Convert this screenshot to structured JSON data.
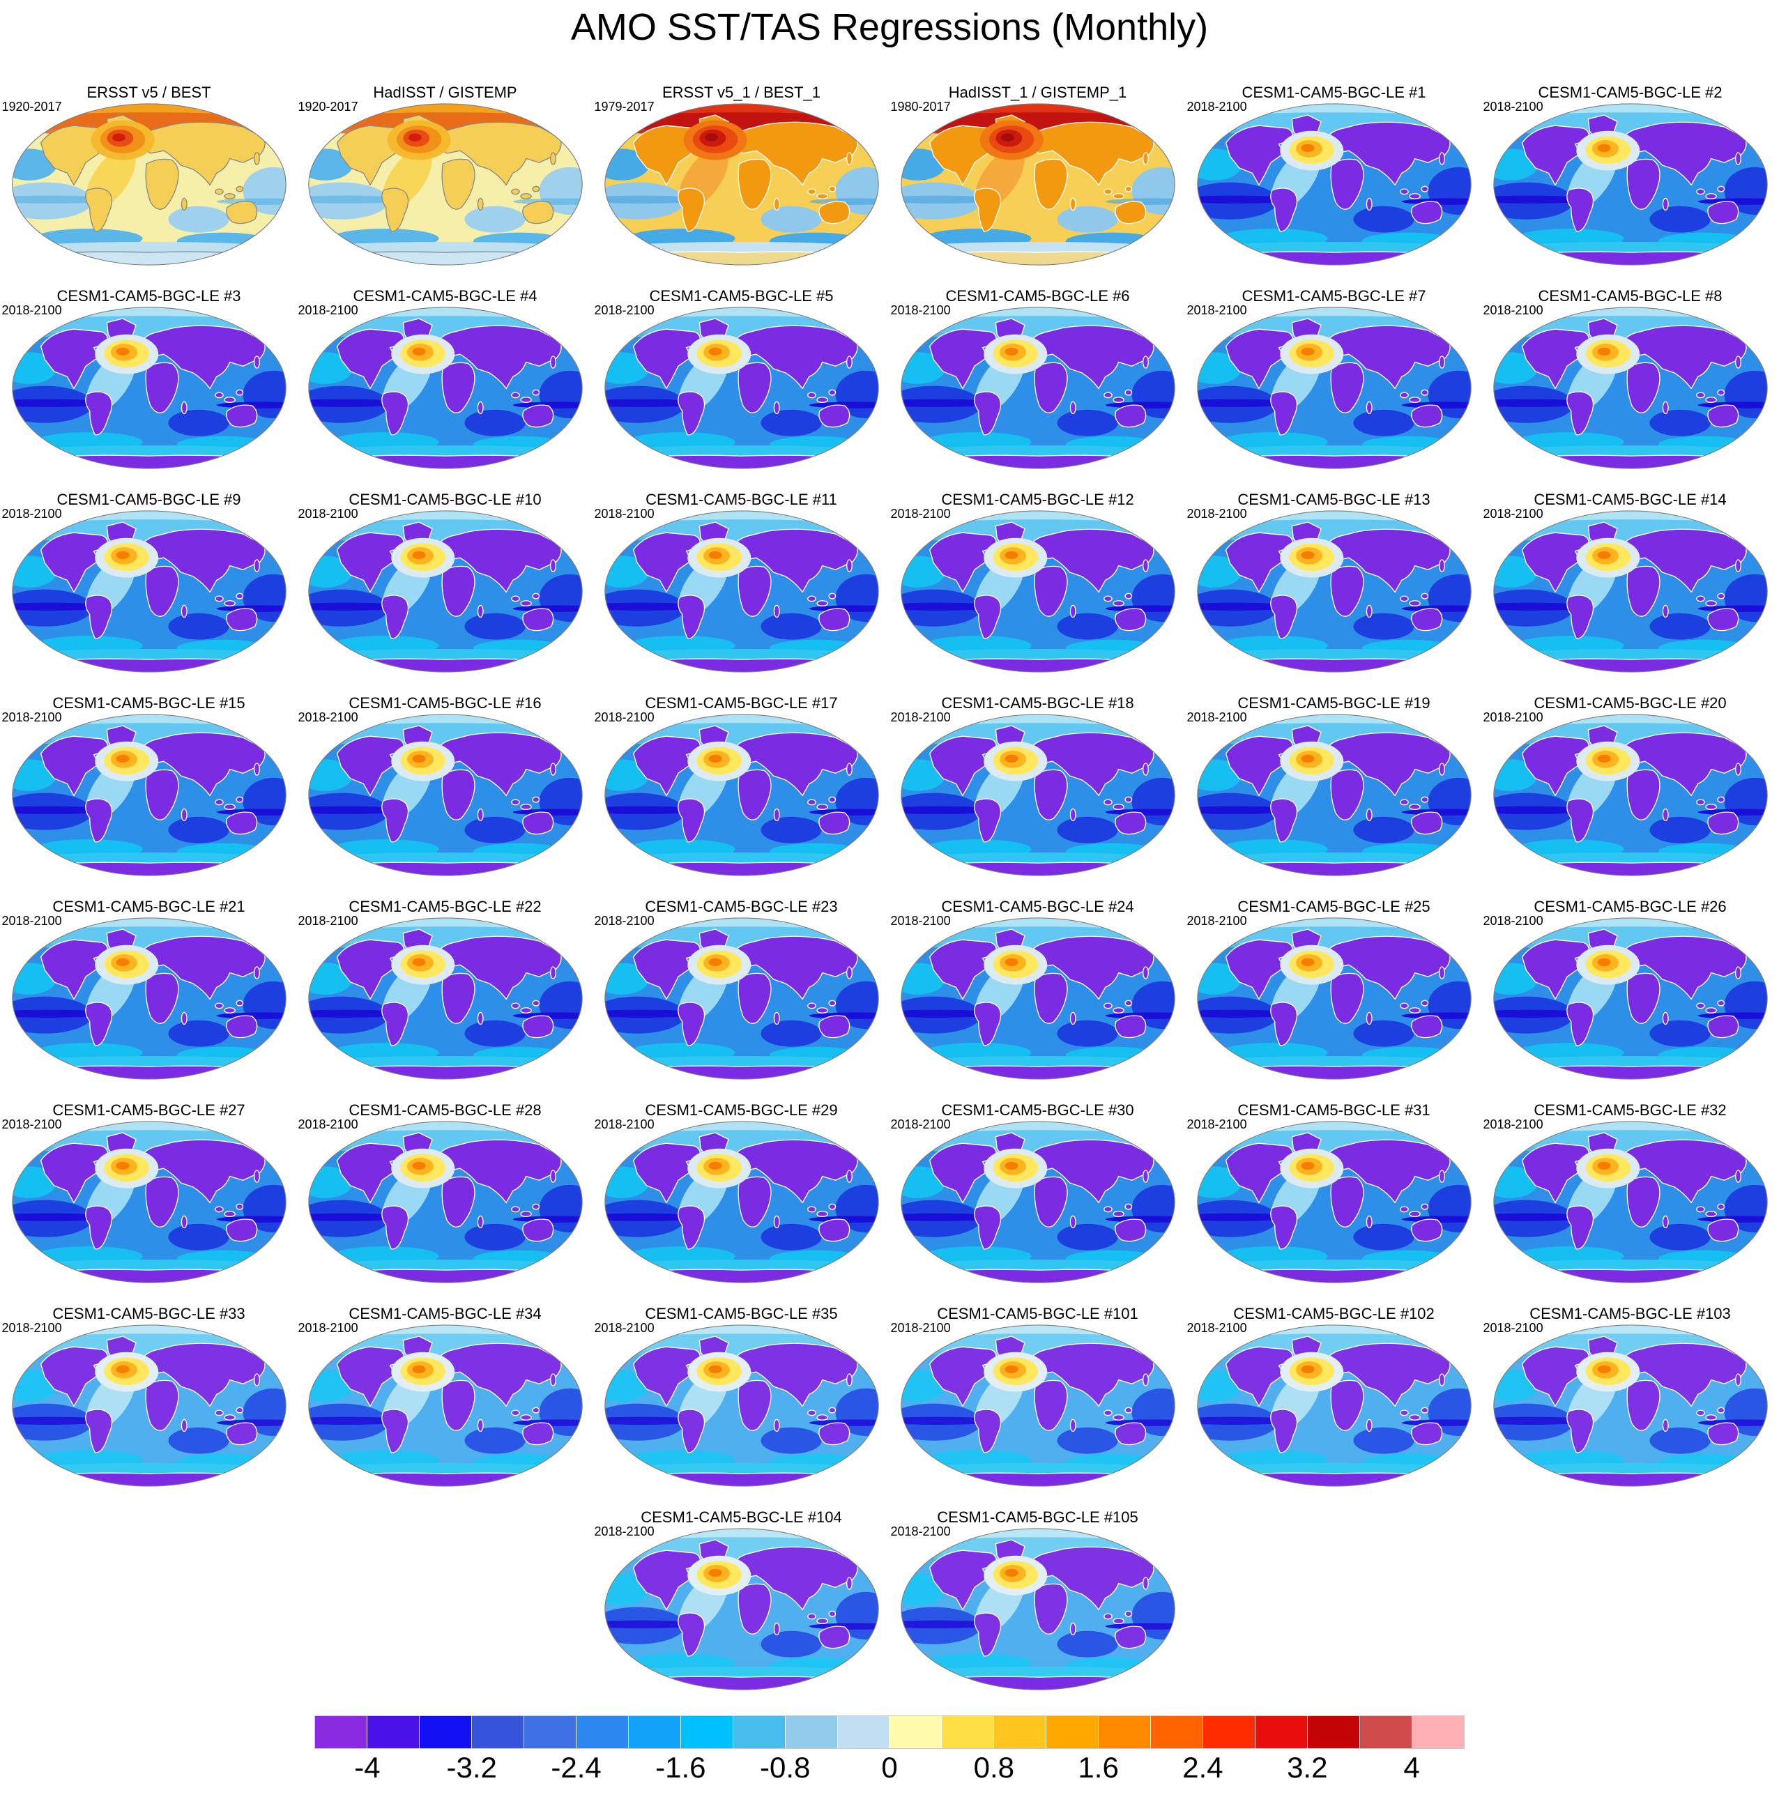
{
  "chart_data": {
    "type": "heatmap",
    "title": "AMO SST/TAS Regressions (Monthly)",
    "projection": "robinson-world-maps",
    "layout": {
      "columns": 6,
      "rows": 8,
      "last_row_grid_columns": [
        3,
        4
      ],
      "legend_position": "bottom"
    },
    "panels": [
      {
        "label": "ERSST v5 / BEST",
        "period": "1920-2017",
        "variant": "obs-warm"
      },
      {
        "label": "HadISST / GISTEMP",
        "period": "1920-2017",
        "variant": "obs-warm"
      },
      {
        "label": "ERSST v5_1 / BEST_1",
        "period": "1979-2017",
        "variant": "obs-hot"
      },
      {
        "label": "HadISST_1 / GISTEMP_1",
        "period": "1980-2017",
        "variant": "obs-hot"
      },
      {
        "label": "CESM1-CAM5-BGC-LE #1",
        "period": "2018-2100",
        "variant": "model"
      },
      {
        "label": "CESM1-CAM5-BGC-LE #2",
        "period": "2018-2100",
        "variant": "model"
      },
      {
        "label": "CESM1-CAM5-BGC-LE #3",
        "period": "2018-2100",
        "variant": "model"
      },
      {
        "label": "CESM1-CAM5-BGC-LE #4",
        "period": "2018-2100",
        "variant": "model"
      },
      {
        "label": "CESM1-CAM5-BGC-LE #5",
        "period": "2018-2100",
        "variant": "model"
      },
      {
        "label": "CESM1-CAM5-BGC-LE #6",
        "period": "2018-2100",
        "variant": "model"
      },
      {
        "label": "CESM1-CAM5-BGC-LE #7",
        "period": "2018-2100",
        "variant": "model"
      },
      {
        "label": "CESM1-CAM5-BGC-LE #8",
        "period": "2018-2100",
        "variant": "model"
      },
      {
        "label": "CESM1-CAM5-BGC-LE #9",
        "period": "2018-2100",
        "variant": "model"
      },
      {
        "label": "CESM1-CAM5-BGC-LE #10",
        "period": "2018-2100",
        "variant": "model"
      },
      {
        "label": "CESM1-CAM5-BGC-LE #11",
        "period": "2018-2100",
        "variant": "model"
      },
      {
        "label": "CESM1-CAM5-BGC-LE #12",
        "period": "2018-2100",
        "variant": "model"
      },
      {
        "label": "CESM1-CAM5-BGC-LE #13",
        "period": "2018-2100",
        "variant": "model"
      },
      {
        "label": "CESM1-CAM5-BGC-LE #14",
        "period": "2018-2100",
        "variant": "model"
      },
      {
        "label": "CESM1-CAM5-BGC-LE #15",
        "period": "2018-2100",
        "variant": "model"
      },
      {
        "label": "CESM1-CAM5-BGC-LE #16",
        "period": "2018-2100",
        "variant": "model"
      },
      {
        "label": "CESM1-CAM5-BGC-LE #17",
        "period": "2018-2100",
        "variant": "model"
      },
      {
        "label": "CESM1-CAM5-BGC-LE #18",
        "period": "2018-2100",
        "variant": "model"
      },
      {
        "label": "CESM1-CAM5-BGC-LE #19",
        "period": "2018-2100",
        "variant": "model"
      },
      {
        "label": "CESM1-CAM5-BGC-LE #20",
        "period": "2018-2100",
        "variant": "model"
      },
      {
        "label": "CESM1-CAM5-BGC-LE #21",
        "period": "2018-2100",
        "variant": "model"
      },
      {
        "label": "CESM1-CAM5-BGC-LE #22",
        "period": "2018-2100",
        "variant": "model"
      },
      {
        "label": "CESM1-CAM5-BGC-LE #23",
        "period": "2018-2100",
        "variant": "model"
      },
      {
        "label": "CESM1-CAM5-BGC-LE #24",
        "period": "2018-2100",
        "variant": "model"
      },
      {
        "label": "CESM1-CAM5-BGC-LE #25",
        "period": "2018-2100",
        "variant": "model"
      },
      {
        "label": "CESM1-CAM5-BGC-LE #26",
        "period": "2018-2100",
        "variant": "model"
      },
      {
        "label": "CESM1-CAM5-BGC-LE #27",
        "period": "2018-2100",
        "variant": "model"
      },
      {
        "label": "CESM1-CAM5-BGC-LE #28",
        "period": "2018-2100",
        "variant": "model"
      },
      {
        "label": "CESM1-CAM5-BGC-LE #29",
        "period": "2018-2100",
        "variant": "model"
      },
      {
        "label": "CESM1-CAM5-BGC-LE #30",
        "period": "2018-2100",
        "variant": "model"
      },
      {
        "label": "CESM1-CAM5-BGC-LE #31",
        "period": "2018-2100",
        "variant": "model"
      },
      {
        "label": "CESM1-CAM5-BGC-LE #32",
        "period": "2018-2100",
        "variant": "model"
      },
      {
        "label": "CESM1-CAM5-BGC-LE #33",
        "period": "2018-2100",
        "variant": "model-light"
      },
      {
        "label": "CESM1-CAM5-BGC-LE #34",
        "period": "2018-2100",
        "variant": "model-light"
      },
      {
        "label": "CESM1-CAM5-BGC-LE #35",
        "period": "2018-2100",
        "variant": "model-light"
      },
      {
        "label": "CESM1-CAM5-BGC-LE #101",
        "period": "2018-2100",
        "variant": "model-light"
      },
      {
        "label": "CESM1-CAM5-BGC-LE #102",
        "period": "2018-2100",
        "variant": "model-light"
      },
      {
        "label": "CESM1-CAM5-BGC-LE #103",
        "period": "2018-2100",
        "variant": "model-light"
      },
      {
        "label": "CESM1-CAM5-BGC-LE #104",
        "period": "2018-2100",
        "variant": "model-light",
        "col": 3
      },
      {
        "label": "CESM1-CAM5-BGC-LE #105",
        "period": "2018-2100",
        "variant": "model-light",
        "col": 4
      }
    ],
    "colorbar": {
      "n_segments": 22,
      "range": [
        -4.4,
        4.4
      ],
      "step": 0.4,
      "ticks": [
        "-4",
        "-3.2",
        "-2.4",
        "-1.6",
        "-0.8",
        "0",
        "0.8",
        "1.6",
        "2.4",
        "3.2",
        "4"
      ],
      "tick_values": [
        -4,
        -3.2,
        -2.4,
        -1.6,
        -0.8,
        0,
        0.8,
        1.6,
        2.4,
        3.2,
        4
      ],
      "colors": [
        "#8A2BE2",
        "#4A12E8",
        "#1210F0",
        "#3653DC",
        "#3F70E4",
        "#2C87EE",
        "#12A3F8",
        "#00BFFF",
        "#48BCEC",
        "#92CBEC",
        "#C2DEF2",
        "#FFFAAC",
        "#FFDF45",
        "#FFC41E",
        "#FFA800",
        "#FF8A00",
        "#FF6400",
        "#FF2C00",
        "#E90C0C",
        "#C40404",
        "#CF4A4A",
        "#FFB0B5"
      ]
    }
  }
}
